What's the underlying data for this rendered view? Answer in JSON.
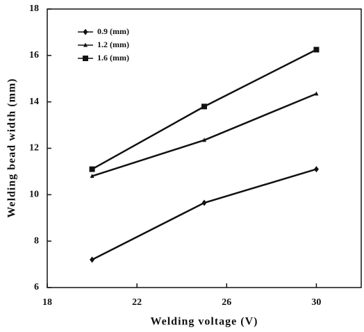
{
  "chart_data": {
    "type": "line",
    "x_label": "Welding voltage (V)",
    "y_label": "Welding bead width (mm)",
    "x": [
      20,
      25,
      30
    ],
    "series": [
      {
        "name": "0.9 (mm)",
        "color": "#111111",
        "marker": "diamond",
        "values": [
          7.2,
          9.65,
          11.1
        ]
      },
      {
        "name": "1.2 (mm)",
        "color": "#111111",
        "marker": "triangle",
        "values": [
          10.8,
          12.35,
          14.35
        ]
      },
      {
        "name": "1.6 (mm)",
        "color": "#111111",
        "marker": "square",
        "values": [
          11.1,
          13.8,
          16.25
        ]
      }
    ],
    "xlim": [
      18,
      32
    ],
    "xticks": [
      18,
      22,
      26,
      30
    ],
    "ylim": [
      6,
      18
    ],
    "yticks": [
      6,
      8,
      10,
      12,
      14,
      16,
      18
    ],
    "grid": false,
    "legend": "upper left"
  }
}
